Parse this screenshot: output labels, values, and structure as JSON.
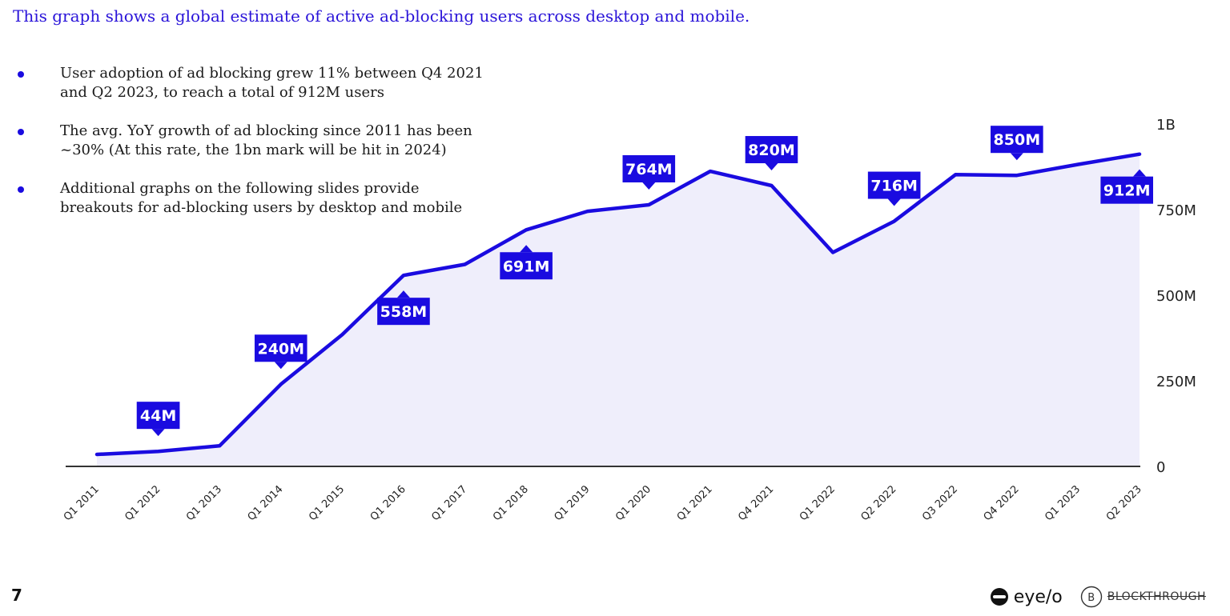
{
  "intro": "This graph shows a global estimate of active ad-blocking users across desktop and mobile.",
  "bullets": [
    "User adoption of ad blocking grew 11% between Q4 2021 and Q2 2023, to reach a total of 912M users",
    "The avg. YoY growth of ad blocking since 2011 has been ~30% (At this rate, the 1bn mark will be hit in 2024)",
    "Additional graphs on the following slides provide breakouts for ad-blocking users by desktop and mobile"
  ],
  "page_number": "7",
  "logos": {
    "eyeo": "eye/o",
    "blockthrough": "BLOCKTHROUGH"
  },
  "colors": {
    "accent": "#1a0be0",
    "fill": "#efeefb",
    "axis": "#333333"
  },
  "chart_data": {
    "type": "area",
    "title": "",
    "xlabel": "",
    "ylabel": "",
    "ylim": [
      0,
      1000
    ],
    "y_ticks": [
      0,
      250,
      500,
      750,
      1000
    ],
    "y_tick_labels": [
      "0",
      "250M",
      "500M",
      "750M",
      "1B"
    ],
    "y_axis_position": "right",
    "grid": false,
    "categories": [
      "Q1 2011",
      "Q1 2012",
      "Q1 2013",
      "Q1 2014",
      "Q1 2015",
      "Q1 2016",
      "Q1 2017",
      "Q1 2018",
      "Q1 2019",
      "Q1 2020",
      "Q1 2021",
      "Q4 2021",
      "Q1 2022",
      "Q2 2022",
      "Q3 2022",
      "Q4 2022",
      "Q1 2023",
      "Q2 2023"
    ],
    "series": [
      {
        "values": [
          35,
          44,
          60,
          240,
          385,
          558,
          590,
          691,
          745,
          764,
          862,
          820,
          625,
          716,
          852,
          850,
          882,
          912
        ]
      }
    ],
    "data_labels": [
      {
        "index": 1,
        "text": "44M",
        "position": "above"
      },
      {
        "index": 3,
        "text": "240M",
        "position": "above"
      },
      {
        "index": 5,
        "text": "558M",
        "position": "below"
      },
      {
        "index": 7,
        "text": "691M",
        "position": "below"
      },
      {
        "index": 9,
        "text": "764M",
        "position": "above"
      },
      {
        "index": 11,
        "text": "820M",
        "position": "above"
      },
      {
        "index": 13,
        "text": "716M",
        "position": "above"
      },
      {
        "index": 15,
        "text": "850M",
        "position": "above"
      },
      {
        "index": 17,
        "text": "912M",
        "position": "below"
      }
    ]
  }
}
